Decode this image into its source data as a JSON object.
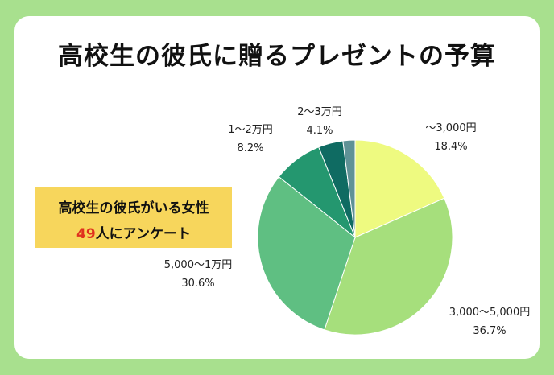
{
  "title": "高校生の彼氏に贈るプレゼントの予算",
  "survey": {
    "line1": "高校生の彼氏がいる女性",
    "count": "49",
    "line2_suffix": "人にアンケート"
  },
  "colors": {
    "background": "#a8e08e",
    "highlight_box": "#f7d65c",
    "count_red": "#e0301e"
  },
  "chart_data": {
    "type": "pie",
    "title": "高校生の彼氏に贈るプレゼントの予算",
    "slices": [
      {
        "label": "〜3,000円",
        "value": 18.4,
        "value_label": "18.4%",
        "color": "#eefa80"
      },
      {
        "label": "3,000〜5,000円",
        "value": 36.7,
        "value_label": "36.7%",
        "color": "#a6df7c"
      },
      {
        "label": "5,000〜1万円",
        "value": 30.6,
        "value_label": "30.6%",
        "color": "#5fbf82"
      },
      {
        "label": "1〜2万円",
        "value": 8.2,
        "value_label": "8.2%",
        "color": "#24976f"
      },
      {
        "label": "2〜3万円",
        "value": 4.1,
        "value_label": "4.1%",
        "color": "#0f6b62"
      },
      {
        "label": "",
        "value": 2.0,
        "value_label": "",
        "color": "#5f9296"
      }
    ]
  }
}
